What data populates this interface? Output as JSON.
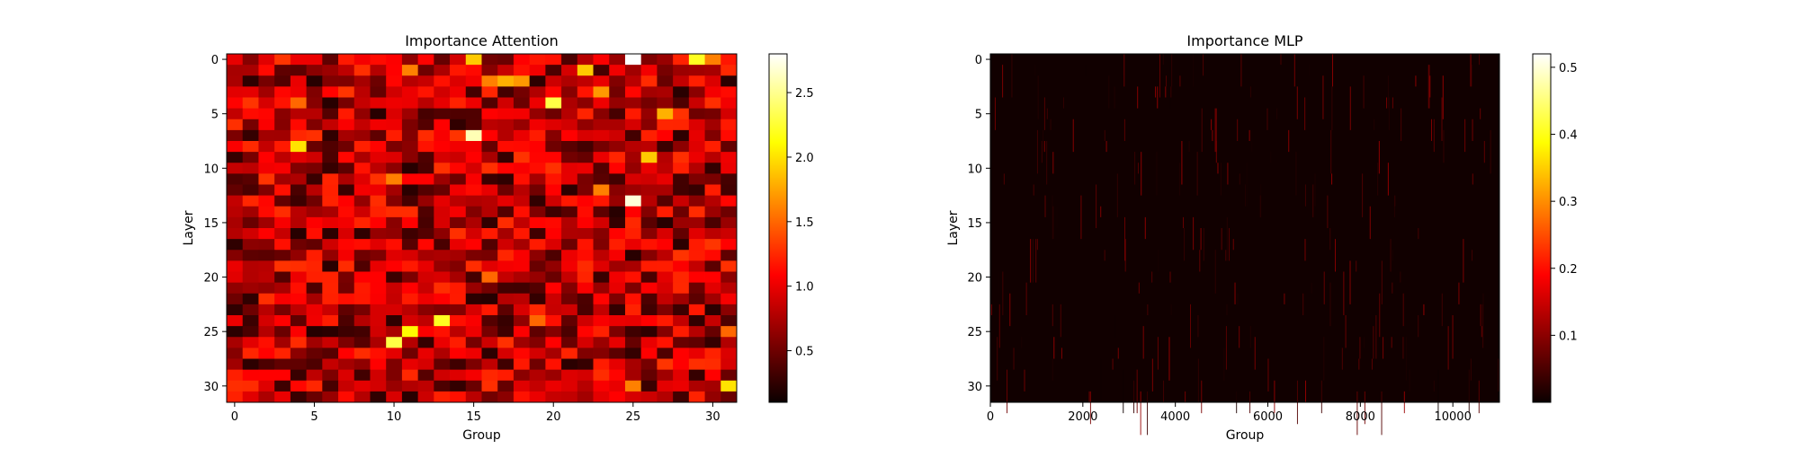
{
  "chart_data": [
    {
      "type": "heatmap",
      "title": "Importance Attention",
      "xlabel": "Group",
      "ylabel": "Layer",
      "x_ticks": [
        0,
        5,
        10,
        15,
        20,
        25,
        30
      ],
      "y_ticks": [
        0,
        5,
        10,
        15,
        20,
        25,
        30
      ],
      "grid_shape": [
        32,
        32
      ],
      "xlim": [
        -0.5,
        31.5
      ],
      "ylim": [
        31.5,
        -0.5
      ],
      "colormap": "hot",
      "colorbar": {
        "min": 0.1,
        "max": 2.8,
        "ticks": [
          0.5,
          1.0,
          1.5,
          2.0,
          2.5
        ]
      },
      "cell_stats": {
        "typical_min": 0.2,
        "typical_max": 1.3
      },
      "highlights": [
        {
          "row": 0,
          "col": 15,
          "value": 1.9
        },
        {
          "row": 0,
          "col": 25,
          "value": 2.8
        },
        {
          "row": 0,
          "col": 29,
          "value": 2.2
        },
        {
          "row": 0,
          "col": 30,
          "value": 1.6
        },
        {
          "row": 1,
          "col": 22,
          "value": 1.9
        },
        {
          "row": 1,
          "col": 11,
          "value": 1.6
        },
        {
          "row": 2,
          "col": 16,
          "value": 1.6
        },
        {
          "row": 2,
          "col": 17,
          "value": 1.8
        },
        {
          "row": 2,
          "col": 18,
          "value": 1.7
        },
        {
          "row": 3,
          "col": 23,
          "value": 1.7
        },
        {
          "row": 4,
          "col": 20,
          "value": 2.3
        },
        {
          "row": 5,
          "col": 27,
          "value": 1.8
        },
        {
          "row": 7,
          "col": 15,
          "value": 2.6
        },
        {
          "row": 8,
          "col": 4,
          "value": 2.0
        },
        {
          "row": 9,
          "col": 26,
          "value": 1.9
        },
        {
          "row": 11,
          "col": 10,
          "value": 1.6
        },
        {
          "row": 12,
          "col": 23,
          "value": 1.6
        },
        {
          "row": 13,
          "col": 25,
          "value": 2.7
        },
        {
          "row": 24,
          "col": 13,
          "value": 2.2
        },
        {
          "row": 25,
          "col": 11,
          "value": 2.1
        },
        {
          "row": 26,
          "col": 10,
          "value": 2.3
        },
        {
          "row": 30,
          "col": 31,
          "value": 2.0
        },
        {
          "row": 30,
          "col": 25,
          "value": 1.6
        },
        {
          "row": 4,
          "col": 4,
          "value": 1.5
        },
        {
          "row": 20,
          "col": 16,
          "value": 1.5
        },
        {
          "row": 24,
          "col": 19,
          "value": 1.5
        },
        {
          "row": 25,
          "col": 31,
          "value": 1.5
        }
      ]
    },
    {
      "type": "heatmap",
      "title": "Importance MLP",
      "xlabel": "Group",
      "ylabel": "Layer",
      "x_ticks": [
        0,
        2000,
        4000,
        6000,
        8000,
        10000
      ],
      "y_ticks": [
        0,
        5,
        10,
        15,
        20,
        25,
        30
      ],
      "grid_shape": [
        32,
        11008
      ],
      "xlim": [
        0,
        11008
      ],
      "ylim": [
        31.5,
        -0.5
      ],
      "colormap": "hot",
      "colorbar": {
        "min": 0.0,
        "max": 0.52,
        "ticks": [
          0.1,
          0.2,
          0.3,
          0.4,
          0.5
        ]
      },
      "cell_stats": {
        "typical_min": 0.0,
        "typical_max": 0.05
      }
    }
  ]
}
